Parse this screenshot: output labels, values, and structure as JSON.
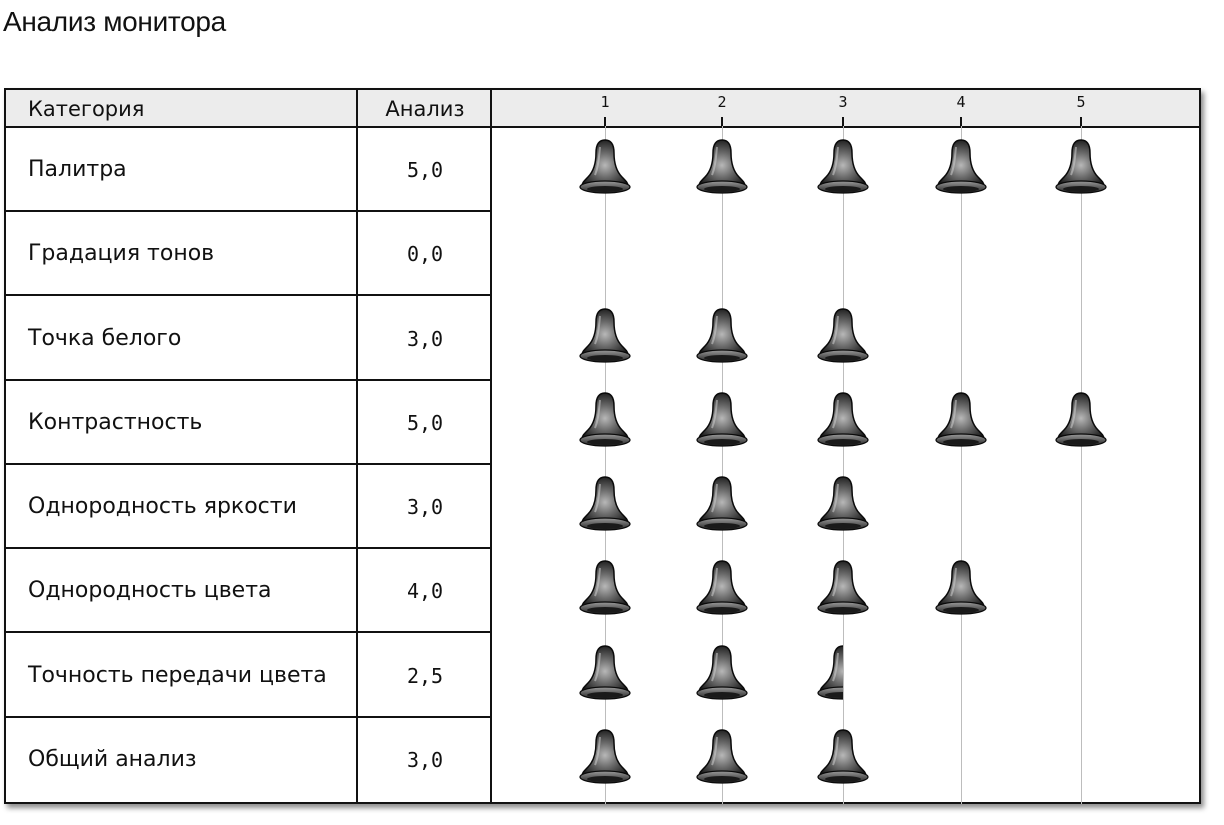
{
  "page": {
    "title": "Анализ монитора"
  },
  "table": {
    "headers": {
      "category": "Категория",
      "rating": "Анализ"
    },
    "scale": [
      "1",
      "2",
      "3",
      "4",
      "5"
    ],
    "icon": "bell-icon",
    "rows": [
      {
        "category": "Палитра",
        "score_text": "5,0",
        "score": 5.0
      },
      {
        "category": "Градация тонов",
        "score_text": "0,0",
        "score": 0.0
      },
      {
        "category": "Точка белого",
        "score_text": "3,0",
        "score": 3.0
      },
      {
        "category": "Контрастность",
        "score_text": "5,0",
        "score": 5.0
      },
      {
        "category": "Однородность яркости",
        "score_text": "3,0",
        "score": 3.0
      },
      {
        "category": "Однородность цвета",
        "score_text": "4,0",
        "score": 4.0
      },
      {
        "category": "Точность передачи цвета",
        "score_text": "2,5",
        "score": 2.5
      },
      {
        "category": "Общий анализ",
        "score_text": "3,0",
        "score": 3.0
      }
    ]
  }
}
